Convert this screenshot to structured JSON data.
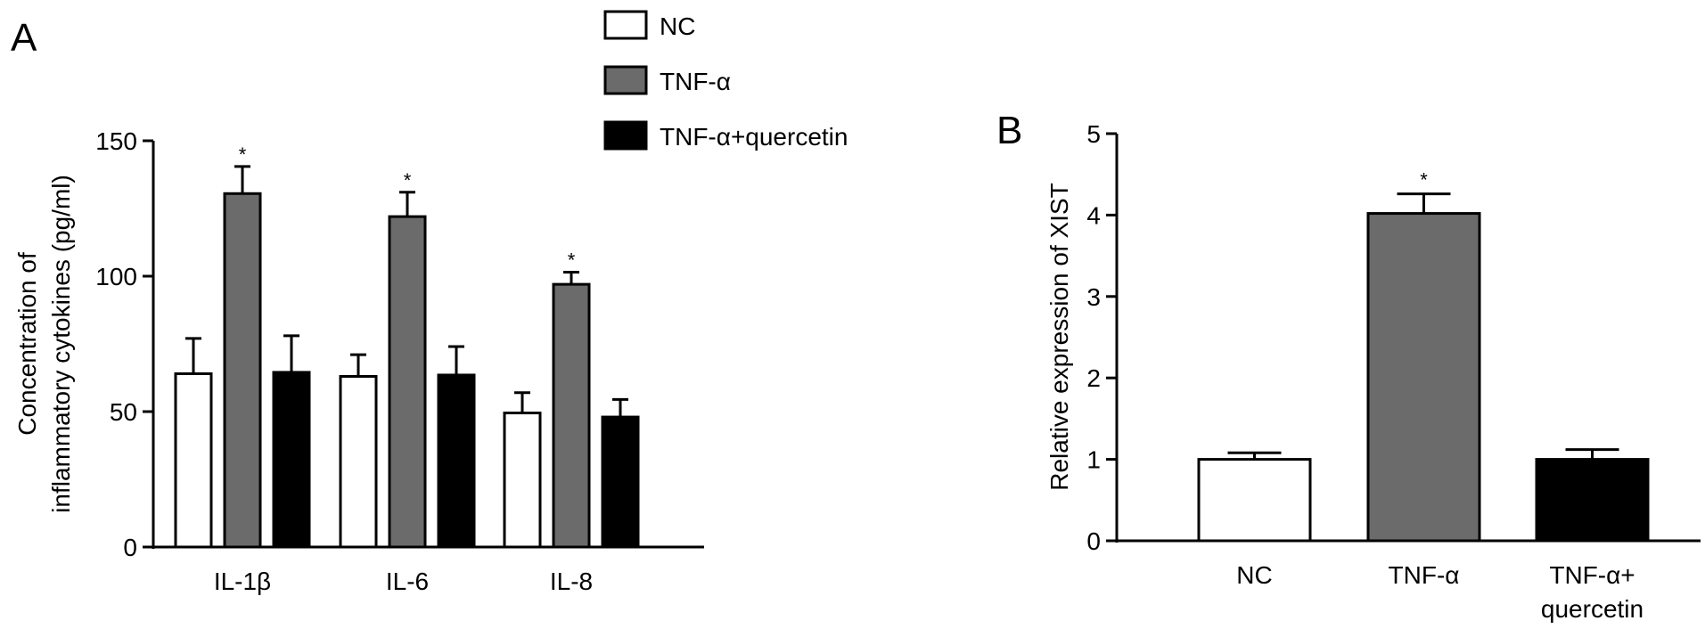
{
  "panels": {
    "a_label": "A",
    "b_label": "B"
  },
  "colors": {
    "NC": "#ffffff",
    "TNF-α": "#6b6b6b",
    "TNF-α+quercetin": "#000000"
  },
  "chart_data": [
    {
      "panel": "A",
      "type": "bar",
      "ylabel_lines": [
        "Concentration of",
        "inflammatory cytokines (pg/ml)"
      ],
      "ylim": [
        0,
        150
      ],
      "yticks": [
        "0",
        "50",
        "100",
        "150"
      ],
      "categories": [
        "IL-1β",
        "IL-6",
        "IL-8"
      ],
      "legend": {
        "position": "top-center"
      },
      "series": [
        {
          "name": "NC",
          "values": [
            64,
            63,
            49.5
          ],
          "errors": [
            13,
            8,
            7.5
          ],
          "sig": [
            "",
            "",
            ""
          ]
        },
        {
          "name": "TNF-α",
          "values": [
            130.5,
            122,
            97
          ],
          "errors": [
            10,
            9,
            4.5
          ],
          "sig": [
            "*",
            "*",
            "*"
          ]
        },
        {
          "name": "TNF-α+quercetin",
          "values": [
            64.5,
            63.5,
            48
          ],
          "errors": [
            13.5,
            10.5,
            6.5
          ],
          "sig": [
            "",
            "",
            ""
          ]
        }
      ],
      "grid": false
    },
    {
      "panel": "B",
      "type": "bar",
      "ylabel": "Relative expression of XIST",
      "ylim": [
        0,
        5
      ],
      "yticks": [
        "0",
        "1",
        "2",
        "3",
        "4",
        "5"
      ],
      "categories": [
        [
          "NC"
        ],
        [
          "TNF-α"
        ],
        [
          "TNF-α+",
          "quercetin"
        ]
      ],
      "values": [
        1.0,
        4.02,
        1.0
      ],
      "errors": [
        0.08,
        0.24,
        0.12
      ],
      "sig": [
        "",
        "*",
        ""
      ],
      "grid": false
    }
  ]
}
